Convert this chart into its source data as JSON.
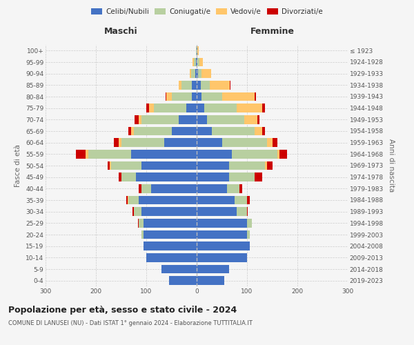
{
  "age_groups": [
    "0-4",
    "5-9",
    "10-14",
    "15-19",
    "20-24",
    "25-29",
    "30-34",
    "35-39",
    "40-44",
    "45-49",
    "50-54",
    "55-59",
    "60-64",
    "65-69",
    "70-74",
    "75-79",
    "80-84",
    "85-89",
    "90-94",
    "95-99",
    "100+"
  ],
  "birth_years": [
    "2019-2023",
    "2014-2018",
    "2009-2013",
    "2004-2008",
    "1999-2003",
    "1994-1998",
    "1989-1993",
    "1984-1988",
    "1979-1983",
    "1974-1978",
    "1969-1973",
    "1964-1968",
    "1959-1963",
    "1954-1958",
    "1949-1953",
    "1944-1948",
    "1939-1943",
    "1934-1938",
    "1929-1933",
    "1924-1928",
    "≤ 1923"
  ],
  "male": {
    "celibi": [
      55,
      70,
      100,
      105,
      105,
      105,
      110,
      115,
      90,
      120,
      110,
      130,
      65,
      50,
      35,
      20,
      10,
      10,
      3,
      2,
      0
    ],
    "coniugati": [
      0,
      0,
      0,
      0,
      5,
      10,
      15,
      20,
      20,
      30,
      60,
      85,
      85,
      75,
      75,
      65,
      40,
      20,
      8,
      4,
      1
    ],
    "vedovi": [
      0,
      0,
      0,
      0,
      0,
      0,
      0,
      2,
      0,
      0,
      2,
      5,
      5,
      5,
      5,
      10,
      10,
      5,
      3,
      2,
      1
    ],
    "divorziati": [
      0,
      0,
      0,
      0,
      0,
      2,
      2,
      3,
      5,
      5,
      5,
      20,
      10,
      5,
      8,
      5,
      2,
      1,
      0,
      0,
      0
    ]
  },
  "female": {
    "nubili": [
      55,
      65,
      100,
      105,
      100,
      100,
      80,
      75,
      60,
      65,
      65,
      70,
      50,
      30,
      20,
      15,
      10,
      8,
      3,
      2,
      1
    ],
    "coniugate": [
      0,
      0,
      0,
      0,
      5,
      10,
      20,
      25,
      25,
      50,
      70,
      90,
      90,
      85,
      75,
      65,
      40,
      18,
      6,
      3,
      0
    ],
    "vedove": [
      0,
      0,
      0,
      0,
      0,
      0,
      0,
      0,
      0,
      0,
      5,
      5,
      10,
      15,
      25,
      50,
      65,
      40,
      20,
      8,
      3
    ],
    "divorziate": [
      0,
      0,
      0,
      0,
      0,
      0,
      2,
      5,
      5,
      15,
      10,
      15,
      10,
      5,
      5,
      5,
      3,
      1,
      0,
      0,
      0
    ]
  },
  "colors": {
    "celibi": "#4472c4",
    "coniugati": "#b8cfa0",
    "vedovi": "#ffc66b",
    "divorziati": "#cc0000"
  },
  "title": "Popolazione per età, sesso e stato civile - 2024",
  "subtitle": "COMUNE DI LANUSEI (NU) - Dati ISTAT 1° gennaio 2024 - Elaborazione TUTTITALIA.IT",
  "xlabel_left": "Maschi",
  "xlabel_right": "Femmine",
  "ylabel_left": "Fasce di età",
  "ylabel_right": "Anni di nascita",
  "xlim": 300,
  "background_color": "#f5f5f5",
  "grid_color": "#cccccc"
}
